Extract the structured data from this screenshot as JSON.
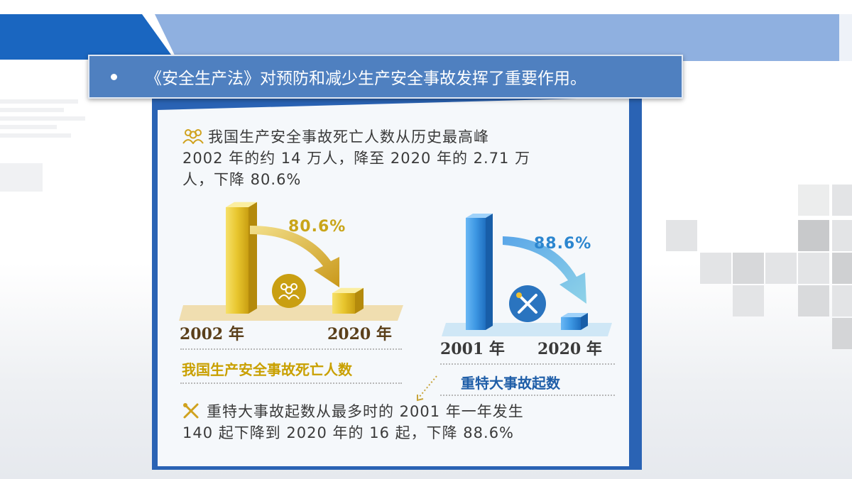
{
  "banner": {
    "text": "《安全生产法》对预防和减少生产安全事故发挥了重要作用。"
  },
  "infographic": {
    "intro_lines": [
      "我国生产安全事故死亡人数从历史最高峰",
      "2002 年的约 14 万人，降至 2020 年的 2.71 万",
      "人，下降 80.6%"
    ],
    "chart_a": {
      "percent_label": "80.6%",
      "year_start": "2002 年",
      "year_end": "2020 年",
      "caption": "我国生产安全事故死亡人数"
    },
    "chart_b": {
      "percent_label": "88.6%",
      "year_start": "2001 年",
      "year_end": "2020 年",
      "caption": "重特大事故起数"
    },
    "outro_lines": [
      "重特大事故起数从最多时的 2001 年一年发生",
      "140 起下降到 2020 年的 16 起，下降 88.6%"
    ],
    "icons": [
      "people-icon",
      "tools-icon"
    ]
  },
  "chart_data": [
    {
      "type": "bar",
      "categories": [
        "2002 年",
        "2020 年"
      ],
      "values": [
        140000,
        27100
      ],
      "title": "我国生产安全事故死亡人数",
      "xlabel": "",
      "ylabel": "",
      "annotation": "80.6%",
      "color": "#e8c62e"
    },
    {
      "type": "bar",
      "categories": [
        "2001 年",
        "2020 年"
      ],
      "values": [
        140,
        16
      ],
      "title": "重特大事故起数",
      "xlabel": "",
      "ylabel": "",
      "annotation": "88.6%",
      "color": "#3d97e3"
    }
  ],
  "colors": {
    "accent_blue": "#1a66c0",
    "banner_blue": "#4f80c0",
    "gold": "#e8c62e",
    "sky_blue": "#3d97e3"
  }
}
